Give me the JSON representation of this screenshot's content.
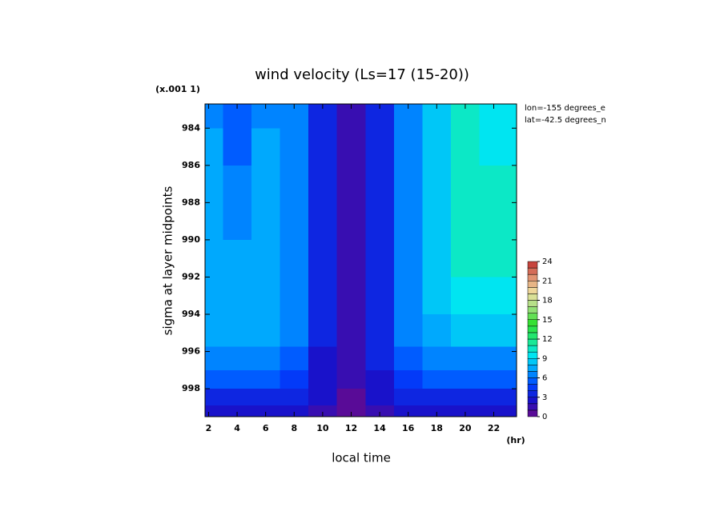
{
  "chart_data": {
    "type": "contour",
    "title": "wind velocity (Ls=17 (15-20))",
    "y_unit": "(x.001 1)",
    "x_unit": "(hr)",
    "xlabel": "local time",
    "ylabel": "sigma at layer midpoints",
    "annotations": [
      "lon=-155 degrees_e",
      "lat=-42.5 degrees_n"
    ],
    "x": [
      2,
      4,
      6,
      8,
      10,
      12,
      14,
      16,
      18,
      20,
      22
    ],
    "y": [
      983,
      985,
      987,
      989,
      991,
      993,
      995,
      996.5,
      997.5,
      998.5,
      999.3
    ],
    "z": [
      [
        6,
        5,
        6,
        6,
        3,
        1,
        3,
        6,
        8,
        10,
        9
      ],
      [
        7,
        5.5,
        7,
        6,
        3,
        1,
        3,
        6,
        8,
        10,
        9
      ],
      [
        7,
        6,
        7,
        6,
        3,
        1,
        3,
        6,
        8,
        10,
        10
      ],
      [
        7,
        6.5,
        7,
        6,
        3,
        1,
        3,
        6,
        8,
        10,
        10
      ],
      [
        7,
        7,
        7.5,
        6,
        3,
        1,
        3,
        6,
        8,
        10,
        10
      ],
      [
        7,
        7,
        7,
        6,
        3,
        1,
        3,
        6,
        8,
        9,
        9
      ],
      [
        7,
        7,
        7,
        6,
        3,
        1,
        3,
        6,
        7.5,
        8,
        8
      ],
      [
        6,
        6,
        6,
        5,
        2.5,
        1,
        3,
        5,
        6,
        6.5,
        6.5
      ],
      [
        5,
        5,
        5,
        4,
        2,
        1,
        2.5,
        4,
        5,
        5,
        5
      ],
      [
        3.5,
        3.5,
        3.5,
        3,
        2,
        0.5,
        2,
        3,
        3.5,
        3.5,
        3.5
      ],
      [
        2,
        2,
        2,
        2,
        1.5,
        0.5,
        1.5,
        2,
        2,
        2,
        2
      ]
    ],
    "xlim": [
      1.75,
      23.6
    ],
    "ylim": [
      999.5,
      982.7
    ],
    "xticks": [
      2,
      4,
      6,
      8,
      10,
      12,
      14,
      16,
      18,
      20,
      22
    ],
    "yticks": [
      984,
      986,
      988,
      990,
      992,
      994,
      996,
      998
    ],
    "colorbar": {
      "levels": [
        0,
        1,
        2,
        3,
        4,
        5,
        6,
        7,
        8,
        9,
        10,
        11,
        12,
        13,
        14,
        15,
        16,
        17,
        18,
        19,
        20,
        21,
        22,
        23,
        24
      ],
      "ticks": [
        0,
        3,
        6,
        9,
        12,
        15,
        18,
        21,
        24
      ]
    },
    "colorscale": [
      "#6a0a8a",
      "#1a10c8",
      "#0040ff",
      "#00a0ff",
      "#00e8f0",
      "#20e880",
      "#30e030",
      "#a0e080",
      "#f0e0a0",
      "#e09070",
      "#c03030"
    ]
  }
}
